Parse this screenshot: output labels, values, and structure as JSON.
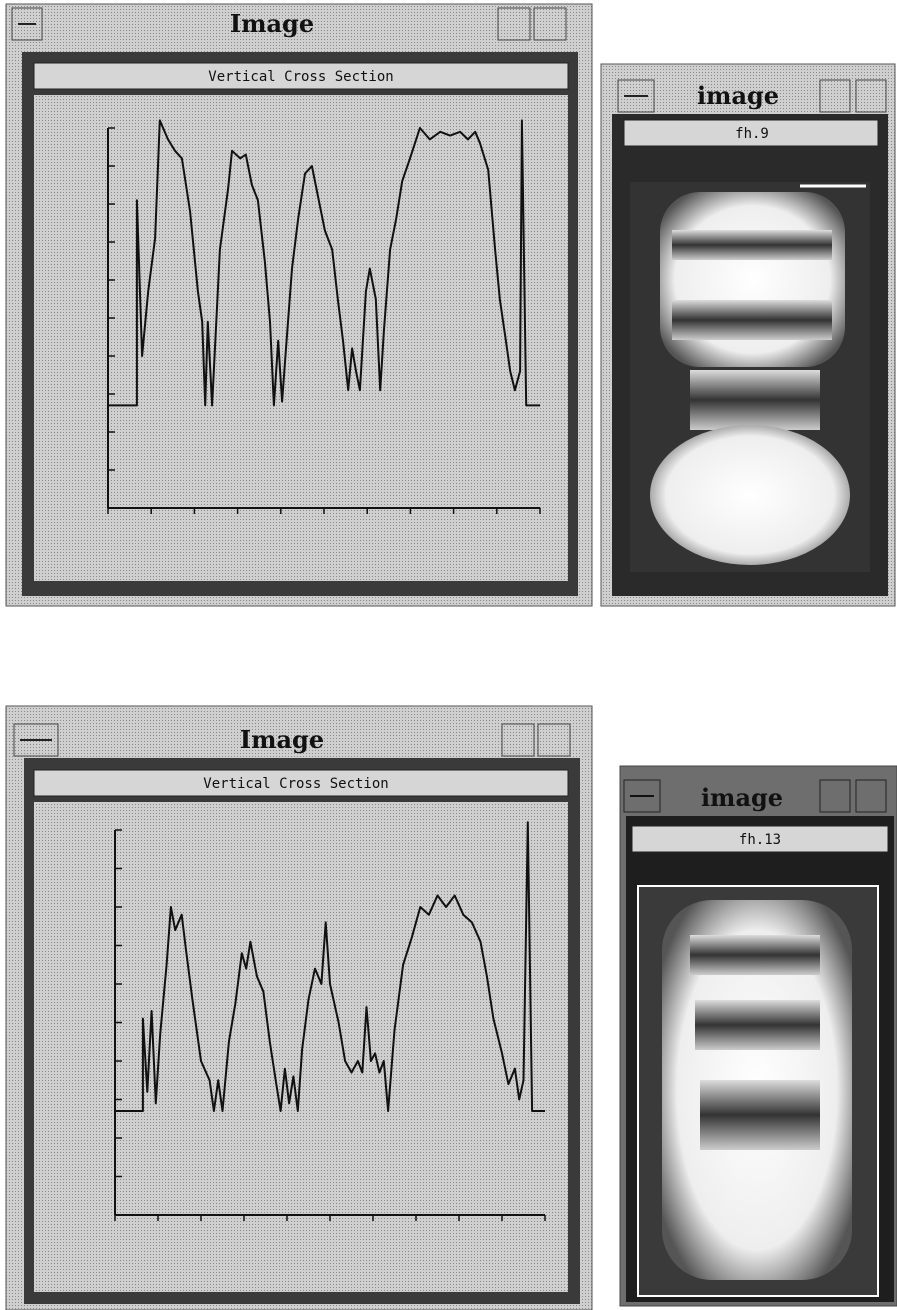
{
  "windows": [
    {
      "title": "Image",
      "panel": "Vertical Cross Section",
      "chart_data": {
        "type": "line",
        "color": "#111111",
        "x": [
          0,
          6.7,
          6.7,
          7.9,
          9.3,
          10.9,
          12.0,
          13.9,
          15.5,
          17.1,
          19.0,
          20.8,
          21.8,
          22.5,
          23.1,
          24.1,
          25.9,
          27.8,
          28.7,
          30.6,
          31.9,
          33.3,
          34.7,
          36.3,
          37.5,
          38.4,
          39.4,
          40.3,
          41.2,
          42.6,
          44.0,
          45.6,
          47.2,
          48.6,
          50.2,
          51.9,
          53.2,
          54.4,
          55.6,
          56.5,
          57.4,
          58.3,
          59.7,
          60.6,
          62.0,
          63.0,
          63.9,
          65.3,
          66.7,
          68.1,
          69.9,
          72.2,
          74.5,
          76.9,
          79.2,
          81.5,
          83.3,
          85.0,
          86.1,
          88.0,
          89.6,
          90.7,
          92.1,
          93.1,
          94.2,
          95.4,
          95.8,
          96.8,
          100
        ],
        "values": [
          2.7,
          2.7,
          8.1,
          4.0,
          5.7,
          7.1,
          10.2,
          9.7,
          9.4,
          9.2,
          7.8,
          5.7,
          4.9,
          2.7,
          4.9,
          2.7,
          6.8,
          8.4,
          9.4,
          9.2,
          9.3,
          8.5,
          8.1,
          6.5,
          4.9,
          2.7,
          4.4,
          2.8,
          4.2,
          6.3,
          7.6,
          8.8,
          9.0,
          8.2,
          7.3,
          6.8,
          5.5,
          4.4,
          3.1,
          4.2,
          3.6,
          3.1,
          5.7,
          6.3,
          5.5,
          3.1,
          4.7,
          6.8,
          7.6,
          8.6,
          9.2,
          10,
          9.7,
          9.9,
          9.8,
          9.9,
          9.7,
          9.9,
          9.6,
          8.9,
          6.8,
          5.5,
          4.4,
          3.6,
          3.1,
          3.6,
          10.2,
          2.7,
          2.7
        ],
        "xlim": [
          0,
          100
        ],
        "ylim": [
          0,
          10
        ],
        "xticks": [
          0,
          10,
          20,
          30,
          40,
          50,
          60,
          70,
          80,
          90,
          100
        ],
        "yticks": [
          0,
          1,
          2,
          3,
          4,
          5,
          6,
          7,
          8,
          9,
          10
        ]
      }
    },
    {
      "title": "image",
      "label": "fh.9"
    },
    {
      "title": "Image",
      "panel": "Vertical Cross Section",
      "chart_data": {
        "type": "line",
        "color": "#111111",
        "x": [
          0,
          6.5,
          6.5,
          7.5,
          8.5,
          9.5,
          10.5,
          12,
          13,
          14,
          15.5,
          16.5,
          18,
          20,
          22,
          23,
          24,
          25,
          26.5,
          28,
          29.5,
          30.5,
          31.5,
          33,
          34.5,
          36,
          37.5,
          38.5,
          39.5,
          40.5,
          41.5,
          42.5,
          43.5,
          45,
          46.5,
          48,
          49,
          50,
          52,
          53.5,
          55,
          56.5,
          57.5,
          58.5,
          59.5,
          60.5,
          61.5,
          62.5,
          63.5,
          65,
          67,
          69,
          71,
          73,
          75,
          77,
          79,
          81,
          83,
          85,
          86.5,
          88,
          90,
          91.5,
          93,
          94,
          95,
          96,
          97,
          100
        ],
        "values": [
          2.7,
          2.7,
          5.1,
          3.2,
          5.3,
          2.9,
          4.7,
          6.5,
          8.0,
          7.4,
          7.8,
          6.9,
          5.6,
          4.0,
          3.5,
          2.7,
          3.5,
          2.7,
          4.5,
          5.5,
          6.8,
          6.4,
          7.1,
          6.2,
          5.8,
          4.5,
          3.4,
          2.7,
          3.8,
          2.9,
          3.6,
          2.7,
          4.3,
          5.6,
          6.4,
          6.0,
          7.6,
          6.0,
          5.0,
          4.0,
          3.7,
          4.0,
          3.7,
          5.4,
          4.0,
          4.2,
          3.7,
          4.0,
          2.7,
          4.8,
          6.5,
          7.2,
          8.0,
          7.8,
          8.3,
          8.0,
          8.3,
          7.8,
          7.6,
          7.1,
          6.2,
          5.1,
          4.2,
          3.4,
          3.8,
          3.0,
          3.5,
          10.2,
          2.7,
          2.7
        ],
        "xlim": [
          0,
          100
        ],
        "ylim": [
          0,
          10
        ],
        "xticks": [
          0,
          10,
          20,
          30,
          40,
          50,
          60,
          70,
          80,
          90,
          100
        ],
        "yticks": [
          0,
          1,
          2,
          3,
          4,
          5,
          6,
          7,
          8,
          9,
          10
        ]
      }
    },
    {
      "title": "image",
      "label": "fh.13"
    }
  ]
}
